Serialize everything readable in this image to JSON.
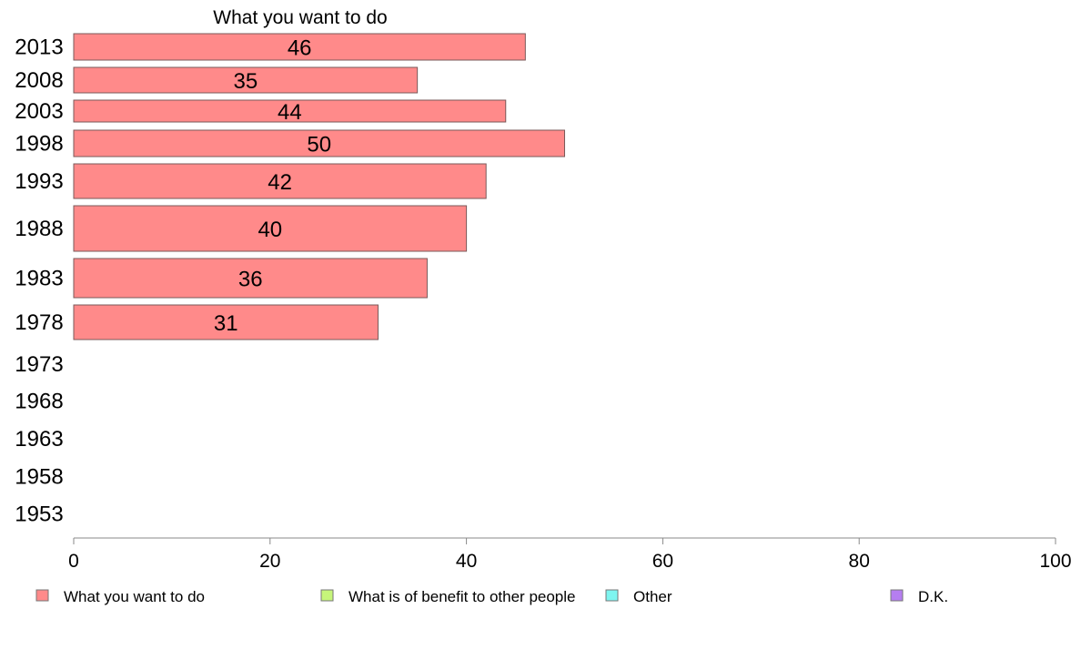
{
  "chart_data": {
    "type": "bar",
    "orientation": "horizontal",
    "title": "What you want to do",
    "categories": [
      "2013",
      "2008",
      "2003",
      "1998",
      "1993",
      "1988",
      "1983",
      "1978",
      "1973",
      "1968",
      "1963",
      "1958",
      "1953"
    ],
    "series": [
      {
        "name": "What you want to do",
        "color": "#ff8a8a",
        "values": [
          46,
          35,
          44,
          50,
          42,
          40,
          36,
          31,
          null,
          null,
          null,
          null,
          null
        ]
      }
    ],
    "xlim": [
      0,
      100
    ],
    "xticks": [
      "0",
      "20",
      "40",
      "60",
      "80",
      "100"
    ],
    "grid": false,
    "legend_position": "bottom"
  },
  "legend": [
    {
      "label": "What you want to do",
      "color": "#ff8a8a"
    },
    {
      "label": "What is of benefit to other people",
      "color": "#c6f57a"
    },
    {
      "label": "Other",
      "color": "#7ef5f0"
    },
    {
      "label": "D.K.",
      "color": "#b57ef0"
    }
  ]
}
